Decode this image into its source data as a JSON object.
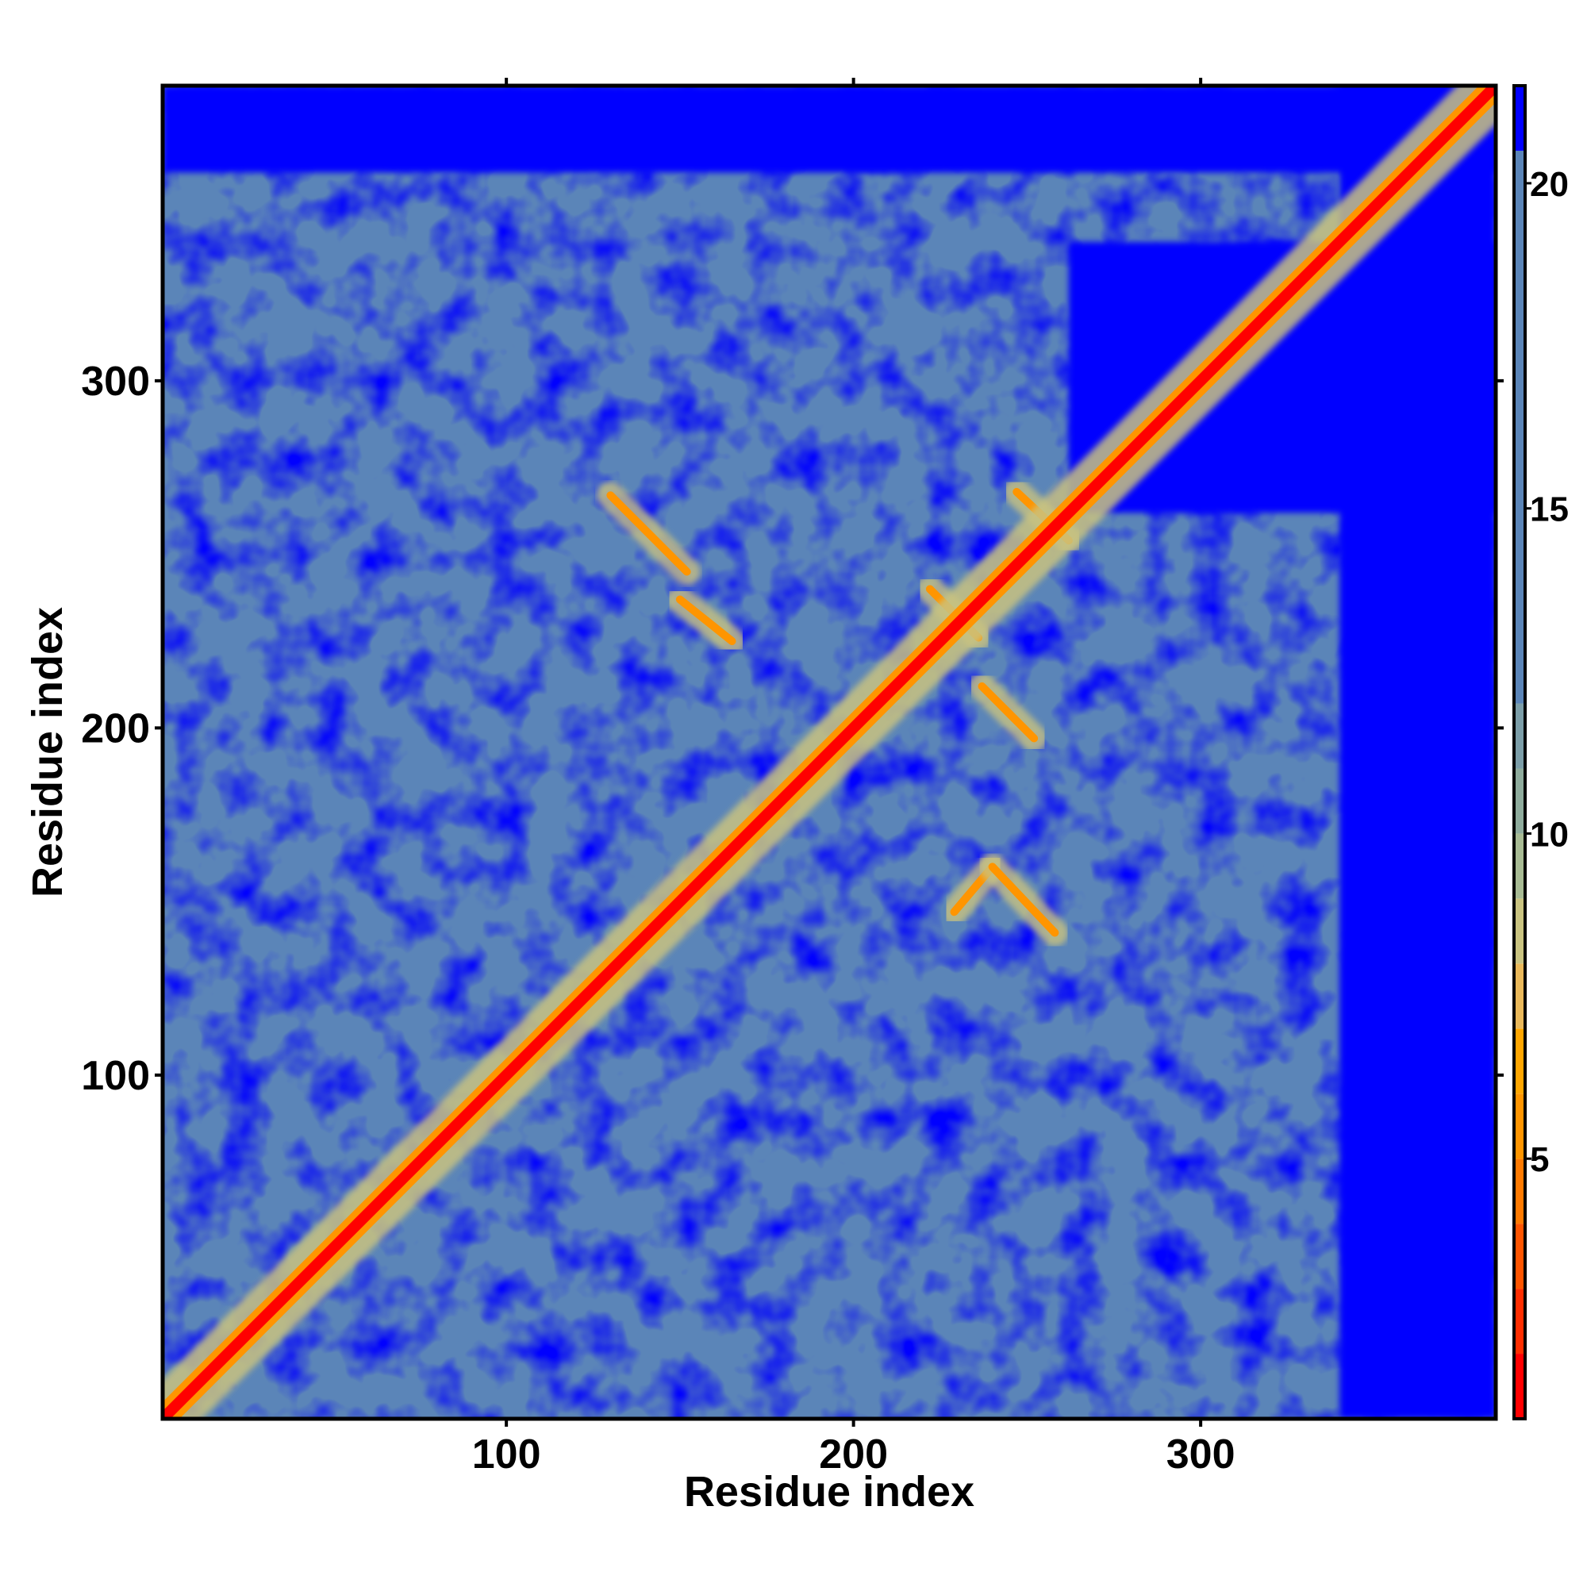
{
  "chart_data": {
    "type": "heatmap",
    "title": "",
    "xlabel": "Residue index",
    "ylabel": "Residue index",
    "xlim": [
      1,
      385
    ],
    "ylim": [
      1,
      385
    ],
    "x_ticks": [
      100,
      200,
      300
    ],
    "y_ticks": [
      100,
      200,
      300
    ],
    "grid": false,
    "legend": "colorbar at right",
    "colorbar": {
      "range": [
        1,
        21.5
      ],
      "ticks": [
        5,
        10,
        15,
        20
      ],
      "bands": [
        {
          "min": 1.0,
          "max": 2.0,
          "color": "#ff0000"
        },
        {
          "min": 2.0,
          "max": 3.0,
          "color": "#ff2e00"
        },
        {
          "min": 3.0,
          "max": 4.0,
          "color": "#ff5500"
        },
        {
          "min": 4.0,
          "max": 5.0,
          "color": "#ff7a00"
        },
        {
          "min": 5.0,
          "max": 6.0,
          "color": "#ff9500"
        },
        {
          "min": 6.0,
          "max": 7.0,
          "color": "#ffa600"
        },
        {
          "min": 7.0,
          "max": 8.0,
          "color": "#e9b85a"
        },
        {
          "min": 8.0,
          "max": 9.0,
          "color": "#c9c380"
        },
        {
          "min": 9.0,
          "max": 10.0,
          "color": "#a8bb94"
        },
        {
          "min": 10.0,
          "max": 11.0,
          "color": "#8fac9d"
        },
        {
          "min": 11.0,
          "max": 12.0,
          "color": "#7c9ea8"
        },
        {
          "min": 12.0,
          "max": 20.5,
          "color": "#5b85b8"
        },
        {
          "min": 20.5,
          "max": 21.5,
          "color": "#0000ff"
        }
      ]
    },
    "color_key": {
      "diagonal_contact": "#ff0000",
      "near_contact": "#ff9500",
      "medium": "#c9c380",
      "background": "#5b85b8",
      "far": "#0000ff"
    },
    "features": {
      "diagonal": {
        "from": 1,
        "to": 385
      },
      "antiparallel_contacts": [
        {
          "from": [
            130,
            267
          ],
          "to": [
            152,
            245
          ]
        },
        {
          "from": [
            150,
            237
          ],
          "to": [
            165,
            225
          ]
        },
        {
          "from": [
            222,
            240
          ],
          "to": [
            236,
            226
          ]
        },
        {
          "from": [
            237,
            212
          ],
          "to": [
            252,
            197
          ]
        },
        {
          "from": [
            247,
            268
          ],
          "to": [
            262,
            254
          ]
        },
        {
          "from": [
            229,
            147
          ],
          "to": [
            240,
            160
          ]
        },
        {
          "from": [
            240,
            160
          ],
          "to": [
            258,
            141
          ]
        }
      ],
      "far_regions": [
        {
          "x": [
            1,
            385
          ],
          "y": [
            360,
            385
          ]
        },
        {
          "x": [
            340,
            385
          ],
          "y": [
            1,
            385
          ]
        },
        {
          "x": [
            262,
            385
          ],
          "y": [
            262,
            340
          ]
        }
      ]
    }
  }
}
